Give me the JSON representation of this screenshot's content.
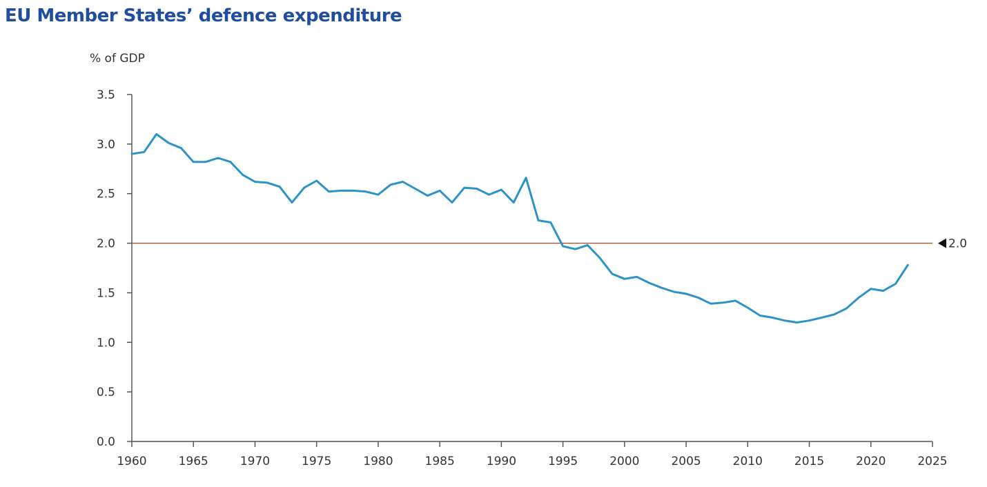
{
  "chart_data": {
    "type": "line",
    "title": "EU Member States’ defence expenditure",
    "ylabel": "% of GDP",
    "xlabel": "",
    "xlim": [
      1960,
      2025
    ],
    "ylim": [
      0.0,
      3.5
    ],
    "x_ticks": [
      1960,
      1965,
      1970,
      1975,
      1980,
      1985,
      1990,
      1995,
      2000,
      2005,
      2010,
      2015,
      2020,
      2025
    ],
    "y_ticks": [
      "0.0",
      "0.5",
      "1.0",
      "1.5",
      "2.0",
      "2.5",
      "3.0",
      "3.5"
    ],
    "grid": false,
    "series_color": "#2b93c8",
    "reference_line": {
      "value": 2.0,
      "label": "2.0",
      "color": "#a0522d"
    },
    "series": [
      {
        "name": "Defence expenditure",
        "x": [
          1960,
          1961,
          1962,
          1963,
          1964,
          1965,
          1966,
          1967,
          1968,
          1969,
          1970,
          1971,
          1972,
          1973,
          1974,
          1975,
          1976,
          1977,
          1978,
          1979,
          1980,
          1981,
          1982,
          1983,
          1984,
          1985,
          1986,
          1987,
          1988,
          1989,
          1990,
          1991,
          1992,
          1993,
          1994,
          1995,
          1996,
          1997,
          1998,
          1999,
          2000,
          2001,
          2002,
          2003,
          2004,
          2005,
          2006,
          2007,
          2008,
          2009,
          2010,
          2011,
          2012,
          2013,
          2014,
          2015,
          2016,
          2017,
          2018,
          2019,
          2020,
          2021,
          2022,
          2023
        ],
        "values": [
          2.9,
          2.92,
          3.1,
          3.01,
          2.96,
          2.82,
          2.82,
          2.86,
          2.82,
          2.69,
          2.62,
          2.61,
          2.57,
          2.41,
          2.56,
          2.63,
          2.52,
          2.53,
          2.53,
          2.52,
          2.49,
          2.59,
          2.62,
          2.55,
          2.48,
          2.53,
          2.41,
          2.56,
          2.55,
          2.49,
          2.54,
          2.41,
          2.66,
          2.23,
          2.21,
          1.97,
          1.94,
          1.98,
          1.85,
          1.69,
          1.64,
          1.66,
          1.6,
          1.55,
          1.51,
          1.49,
          1.45,
          1.39,
          1.4,
          1.42,
          1.35,
          1.27,
          1.25,
          1.22,
          1.2,
          1.22,
          1.25,
          1.28,
          1.34,
          1.45,
          1.54,
          1.52,
          1.59,
          1.78
        ]
      }
    ]
  }
}
